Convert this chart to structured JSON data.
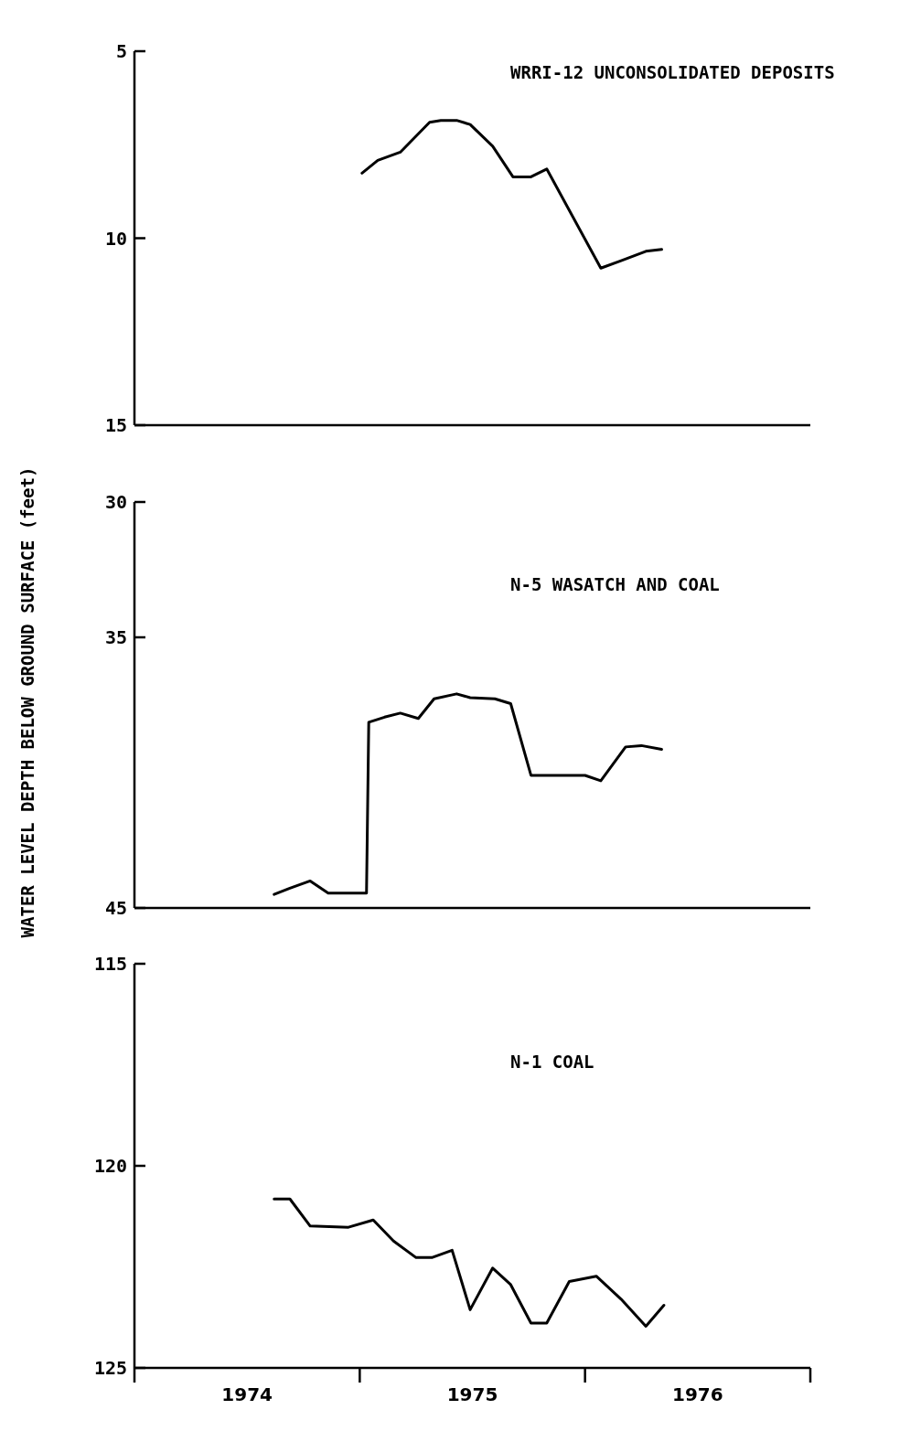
{
  "chart_data": [
    {
      "type": "line",
      "annotations": [
        "WRRI-12 UNCONSOLIDATED DEPOSITS"
      ],
      "xlim": [
        1974,
        1977
      ],
      "ylim": [
        15,
        5
      ],
      "yticks": [
        5,
        10,
        15
      ],
      "tick_labels": "y",
      "grid": false,
      "marker": "none",
      "line_style": "solid",
      "series": [
        {
          "color": "#000000",
          "x": [
            1975.01,
            1975.08,
            1975.18,
            1975.31,
            1975.36,
            1975.43,
            1975.49,
            1975.59,
            1975.68,
            1975.76,
            1975.83,
            1976.07,
            1976.16,
            1976.27,
            1976.34
          ],
          "values": [
            8.26,
            7.92,
            7.7,
            6.9,
            6.85,
            6.85,
            6.96,
            7.54,
            8.36,
            8.36,
            8.15,
            10.8,
            10.6,
            10.35,
            10.3
          ]
        }
      ]
    },
    {
      "type": "line",
      "annotations": [
        "N-5 WASATCH AND COAL"
      ],
      "ylabel": "WATER LEVEL DEPTH BELOW GROUND SURFACE (feet)",
      "xlim": [
        1974,
        1977
      ],
      "ylim": [
        45,
        30
      ],
      "yticks": [
        30,
        35,
        45
      ],
      "tick_labels": "y",
      "grid": false,
      "marker": "none",
      "line_style": "solid",
      "series": [
        {
          "color": "#000000",
          "x": [
            1974.62,
            1974.69,
            1974.78,
            1974.86,
            1974.95,
            1975.03,
            1975.04,
            1975.11,
            1975.18,
            1975.26,
            1975.33,
            1975.43,
            1975.49,
            1975.6,
            1975.67,
            1975.76,
            1975.84,
            1976.0,
            1976.07,
            1976.18,
            1976.25,
            1976.34
          ],
          "values": [
            44.5,
            44.27,
            44.0,
            44.45,
            44.45,
            44.45,
            38.14,
            37.95,
            37.8,
            38.0,
            37.27,
            37.09,
            37.23,
            37.27,
            37.45,
            40.1,
            40.1,
            40.1,
            40.3,
            39.05,
            39.0,
            39.14
          ]
        }
      ]
    },
    {
      "type": "line",
      "annotations": [
        "N-1 COAL"
      ],
      "xlim": [
        1974,
        1977
      ],
      "xticks": [
        {
          "value": 1974,
          "label": null
        },
        {
          "value": 1974.5,
          "label": "1974"
        },
        {
          "value": 1975,
          "label": null
        },
        {
          "value": 1975.5,
          "label": "1975"
        },
        {
          "value": 1976,
          "label": null
        },
        {
          "value": 1976.5,
          "label": "1976"
        },
        {
          "value": 1977,
          "label": null
        }
      ],
      "ylim": [
        125,
        115
      ],
      "yticks": [
        115,
        120,
        125
      ],
      "grid": false,
      "marker": "none",
      "line_style": "solid",
      "series": [
        {
          "color": "#000000",
          "x": [
            1974.62,
            1974.69,
            1974.78,
            1974.95,
            1975.06,
            1975.15,
            1975.25,
            1975.32,
            1975.41,
            1975.49,
            1975.59,
            1975.67,
            1975.76,
            1975.83,
            1975.93,
            1976.05,
            1976.16,
            1976.27,
            1976.35
          ],
          "values": [
            120.82,
            120.82,
            121.49,
            121.52,
            121.34,
            121.86,
            122.27,
            122.27,
            122.09,
            123.56,
            122.53,
            122.94,
            123.89,
            123.89,
            122.86,
            122.73,
            123.3,
            123.97,
            123.45
          ]
        }
      ]
    }
  ]
}
